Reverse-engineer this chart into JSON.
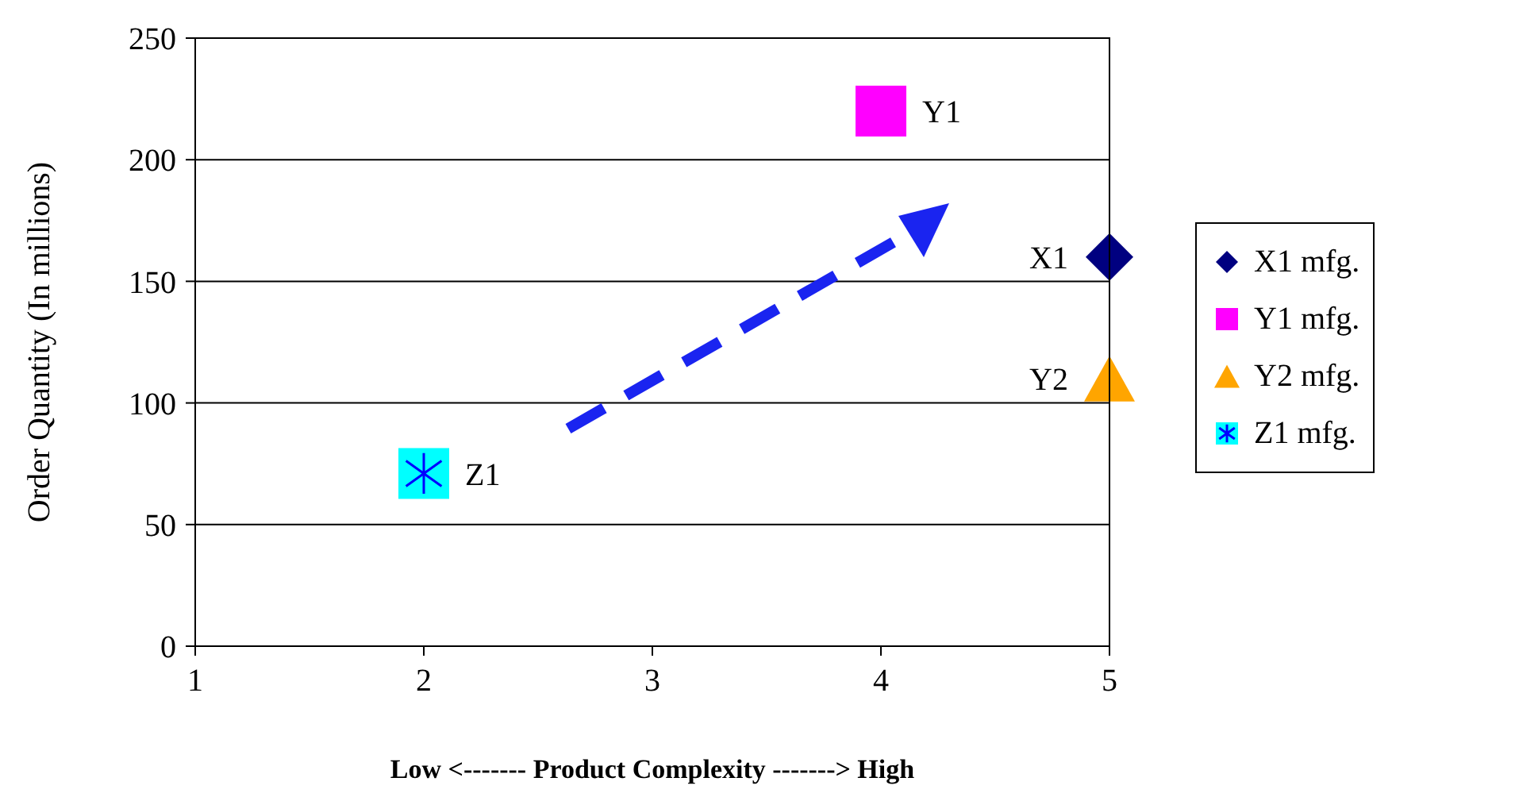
{
  "chart_data": {
    "type": "scatter",
    "xlabel": "Low <-------   Product Complexity   -------> High",
    "ylabel": "Order Quantity (In millions)",
    "xlim": [
      1,
      5
    ],
    "xticks": [
      1,
      2,
      3,
      4,
      5
    ],
    "ylim": [
      0,
      250
    ],
    "yticks": [
      0,
      50,
      100,
      150,
      200,
      250
    ],
    "grid": "y",
    "legend": "right",
    "series": [
      {
        "name": "X1 mfg.",
        "color": "#000080",
        "marker": "diamond",
        "x": [
          5
        ],
        "values": [
          160
        ]
      },
      {
        "name": "Y1 mfg.",
        "color": "#ff00ff",
        "marker": "square",
        "x": [
          4
        ],
        "values": [
          220
        ]
      },
      {
        "name": "Y2 mfg.",
        "color": "#ffa500",
        "marker": "triangle",
        "x": [
          5
        ],
        "values": [
          110
        ]
      },
      {
        "name": "Z1 mfg.",
        "color": "#00ffff",
        "marker": "square",
        "x": [
          2
        ],
        "values": [
          71
        ]
      }
    ],
    "annotations": [
      {
        "text": "X1",
        "x": 5,
        "y": 160
      },
      {
        "text": "Y1",
        "x": 4,
        "y": 220
      },
      {
        "text": "Y2",
        "x": 5,
        "y": 110
      },
      {
        "text": "Z1",
        "x": 2,
        "y": 71
      }
    ]
  }
}
